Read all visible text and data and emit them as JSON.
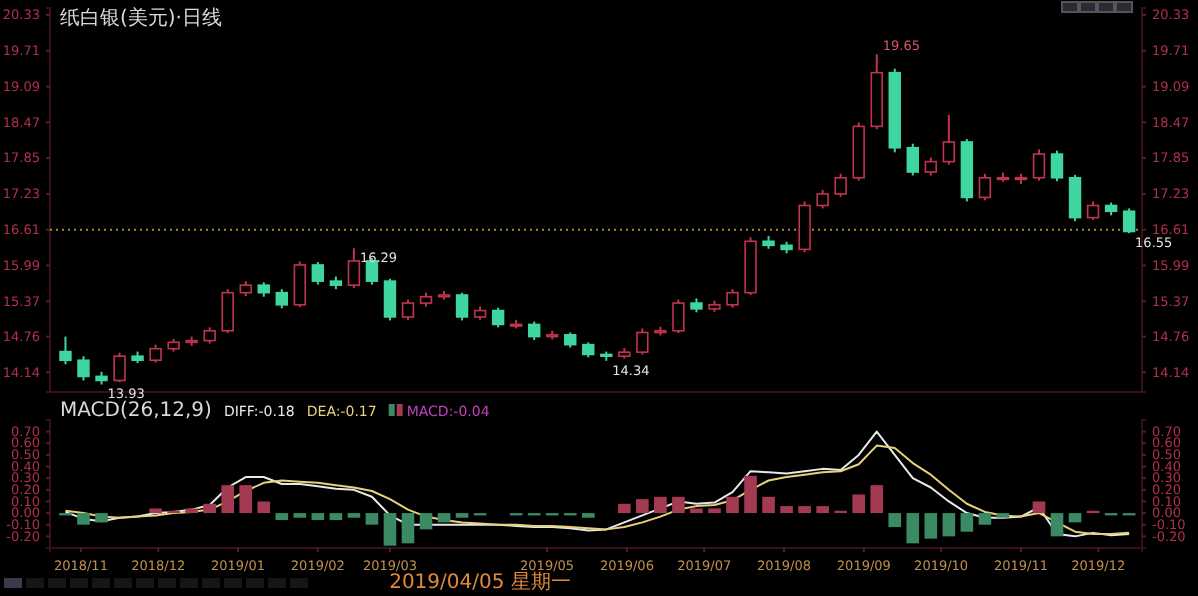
{
  "chart_data": [
    {
      "type": "candlestick",
      "title": "纸白银(美元)·日线",
      "x": [
        "2018-10-26",
        "2018-11-02",
        "2018-11-09",
        "2018-11-16",
        "2018-11-23",
        "2018-11-30",
        "2018-12-07",
        "2018-12-14",
        "2018-12-21",
        "2018-12-28",
        "2019-01-04",
        "2019-01-11",
        "2019-01-18",
        "2019-01-25",
        "2019-02-01",
        "2019-02-08",
        "2019-02-15",
        "2019-02-22",
        "2019-03-01",
        "2019-03-08",
        "2019-03-15",
        "2019-03-22",
        "2019-03-29",
        "2019-04-05",
        "2019-04-12",
        "2019-04-19",
        "2019-04-26",
        "2019-05-03",
        "2019-05-10",
        "2019-05-17",
        "2019-05-24",
        "2019-05-31",
        "2019-06-07",
        "2019-06-14",
        "2019-06-21",
        "2019-06-28",
        "2019-07-05",
        "2019-07-12",
        "2019-07-19",
        "2019-07-26",
        "2019-08-02",
        "2019-08-09",
        "2019-08-16",
        "2019-08-23",
        "2019-08-30",
        "2019-09-06",
        "2019-09-13",
        "2019-09-20",
        "2019-09-27",
        "2019-10-04",
        "2019-10-11",
        "2019-10-18",
        "2019-10-25",
        "2019-11-01",
        "2019-11-08",
        "2019-11-15",
        "2019-11-22",
        "2019-11-29",
        "2019-12-06",
        "2019-12-13"
      ],
      "ohlc": [
        [
          14.5,
          14.76,
          14.28,
          14.35
        ],
        [
          14.35,
          14.42,
          14.0,
          14.07
        ],
        [
          14.07,
          14.15,
          13.93,
          14.0
        ],
        [
          14.0,
          14.48,
          13.97,
          14.42
        ],
        [
          14.42,
          14.5,
          14.3,
          14.35
        ],
        [
          14.35,
          14.62,
          14.31,
          14.55
        ],
        [
          14.55,
          14.72,
          14.5,
          14.66
        ],
        [
          14.66,
          14.76,
          14.6,
          14.69
        ],
        [
          14.69,
          14.92,
          14.64,
          14.86
        ],
        [
          14.86,
          15.58,
          14.82,
          15.52
        ],
        [
          15.52,
          15.72,
          15.46,
          15.65
        ],
        [
          15.65,
          15.7,
          15.45,
          15.52
        ],
        [
          15.52,
          15.58,
          15.25,
          15.31
        ],
        [
          15.31,
          16.06,
          15.27,
          16.0
        ],
        [
          16.0,
          16.05,
          15.66,
          15.72
        ],
        [
          15.72,
          15.8,
          15.58,
          15.65
        ],
        [
          15.65,
          16.29,
          15.6,
          16.07
        ],
        [
          16.07,
          16.12,
          15.66,
          15.72
        ],
        [
          15.72,
          15.76,
          15.04,
          15.1
        ],
        [
          15.1,
          15.4,
          15.05,
          15.34
        ],
        [
          15.34,
          15.52,
          15.28,
          15.45
        ],
        [
          15.45,
          15.55,
          15.4,
          15.48
        ],
        [
          15.48,
          15.52,
          15.04,
          15.1
        ],
        [
          15.1,
          15.28,
          15.05,
          15.21
        ],
        [
          15.21,
          15.26,
          14.92,
          14.97
        ],
        [
          14.97,
          15.05,
          14.9,
          14.97
        ],
        [
          14.97,
          15.02,
          14.7,
          14.76
        ],
        [
          14.76,
          14.86,
          14.71,
          14.79
        ],
        [
          14.79,
          14.83,
          14.57,
          14.62
        ],
        [
          14.62,
          14.66,
          14.4,
          14.45
        ],
        [
          14.45,
          14.5,
          14.34,
          14.42
        ],
        [
          14.42,
          14.56,
          14.38,
          14.49
        ],
        [
          14.49,
          14.9,
          14.45,
          14.83
        ],
        [
          14.83,
          14.93,
          14.78,
          14.86
        ],
        [
          14.86,
          15.4,
          14.82,
          15.34
        ],
        [
          15.34,
          15.42,
          15.18,
          15.24
        ],
        [
          15.24,
          15.38,
          15.19,
          15.31
        ],
        [
          15.31,
          15.58,
          15.26,
          15.52
        ],
        [
          15.52,
          16.48,
          15.48,
          16.41
        ],
        [
          16.41,
          16.5,
          16.28,
          16.34
        ],
        [
          16.34,
          16.4,
          16.2,
          16.27
        ],
        [
          16.27,
          17.1,
          16.22,
          17.03
        ],
        [
          17.03,
          17.3,
          16.98,
          17.23
        ],
        [
          17.23,
          17.58,
          17.18,
          17.51
        ],
        [
          17.51,
          18.47,
          17.46,
          18.4
        ],
        [
          18.4,
          19.65,
          18.35,
          19.33
        ],
        [
          19.33,
          19.4,
          17.95,
          18.03
        ],
        [
          18.03,
          18.1,
          17.55,
          17.61
        ],
        [
          17.61,
          17.86,
          17.55,
          17.79
        ],
        [
          17.79,
          18.6,
          17.74,
          18.13
        ],
        [
          18.13,
          18.18,
          17.1,
          17.17
        ],
        [
          17.17,
          17.58,
          17.12,
          17.51
        ],
        [
          17.51,
          17.6,
          17.44,
          17.51
        ],
        [
          17.51,
          17.58,
          17.4,
          17.51
        ],
        [
          17.51,
          18.0,
          17.46,
          17.92
        ],
        [
          17.92,
          17.98,
          17.45,
          17.51
        ],
        [
          17.51,
          17.56,
          16.76,
          16.82
        ],
        [
          16.82,
          17.1,
          16.78,
          17.03
        ],
        [
          17.03,
          17.08,
          16.86,
          16.93
        ],
        [
          16.93,
          16.98,
          16.55,
          16.58
        ]
      ],
      "xlim": [
        "2018-10-20",
        "2019-12-18"
      ],
      "ylim": [
        13.8,
        20.45
      ],
      "yticks": [
        14.14,
        14.76,
        15.37,
        15.99,
        16.61,
        17.23,
        17.85,
        18.47,
        19.09,
        19.71,
        20.33
      ],
      "y2lim": [
        13.8,
        20.45
      ],
      "y2ticks": [
        14.14,
        14.76,
        15.37,
        15.99,
        16.61,
        17.23,
        17.85,
        18.47,
        19.09,
        19.71,
        20.33
      ],
      "tick_labels": "y",
      "ref_lines": [
        {
          "axis": "y",
          "value": 16.61,
          "color": "#b8862b",
          "line_style": "dotted"
        }
      ],
      "annotations": [
        {
          "text": "13.93",
          "x": "2018-11-09",
          "y": 13.93
        },
        {
          "text": "16.29",
          "x": "2019-02-15",
          "y": 16.29
        },
        {
          "text": "14.34",
          "x": "2019-05-24",
          "y": 14.34
        },
        {
          "text": "19.65",
          "x": "2019-09-06",
          "y": 19.65
        },
        {
          "text": "16.55",
          "x": "2019-12-13",
          "y": 16.55
        }
      ]
    },
    {
      "type": "line",
      "title": "MACD(26,12,9)",
      "legend": "top left",
      "annotations": [
        "2019/04/05 星期一"
      ],
      "x": [
        "2018-10-26",
        "2018-11-02",
        "2018-11-09",
        "2018-11-16",
        "2018-11-23",
        "2018-11-30",
        "2018-12-07",
        "2018-12-14",
        "2018-12-21",
        "2018-12-28",
        "2019-01-04",
        "2019-01-11",
        "2019-01-18",
        "2019-01-25",
        "2019-02-01",
        "2019-02-08",
        "2019-02-15",
        "2019-02-22",
        "2019-03-01",
        "2019-03-08",
        "2019-03-15",
        "2019-03-22",
        "2019-03-29",
        "2019-04-05",
        "2019-04-12",
        "2019-04-19",
        "2019-04-26",
        "2019-05-03",
        "2019-05-10",
        "2019-05-17",
        "2019-05-24",
        "2019-05-31",
        "2019-06-07",
        "2019-06-14",
        "2019-06-21",
        "2019-06-28",
        "2019-07-05",
        "2019-07-12",
        "2019-07-19",
        "2019-07-26",
        "2019-08-02",
        "2019-08-09",
        "2019-08-16",
        "2019-08-23",
        "2019-08-30",
        "2019-09-06",
        "2019-09-13",
        "2019-09-20",
        "2019-09-27",
        "2019-10-04",
        "2019-10-11",
        "2019-10-18",
        "2019-10-25",
        "2019-11-01",
        "2019-11-08",
        "2019-11-15",
        "2019-11-22",
        "2019-11-29",
        "2019-12-06",
        "2019-12-13"
      ],
      "series": [
        {
          "name": "DIFF:-0.18",
          "color": "#e8e8e8",
          "values": [
            0.01,
            -0.05,
            -0.07,
            -0.04,
            -0.03,
            0.0,
            0.01,
            0.03,
            0.07,
            0.22,
            0.31,
            0.31,
            0.25,
            0.25,
            0.23,
            0.21,
            0.2,
            0.14,
            -0.02,
            -0.1,
            -0.1,
            -0.1,
            -0.1,
            -0.1,
            -0.1,
            -0.11,
            -0.12,
            -0.12,
            -0.13,
            -0.15,
            -0.14,
            -0.08,
            -0.02,
            0.04,
            0.1,
            0.08,
            0.09,
            0.18,
            0.36,
            0.35,
            0.34,
            0.36,
            0.38,
            0.37,
            0.5,
            0.7,
            0.5,
            0.3,
            0.22,
            0.1,
            0.0,
            -0.04,
            -0.04,
            -0.03,
            0.05,
            -0.18,
            -0.2,
            -0.17,
            -0.19,
            -0.18
          ]
        },
        {
          "name": "DEA:-0.17",
          "color": "#e6d27a",
          "values": [
            0.02,
            0.0,
            -0.03,
            -0.04,
            -0.03,
            -0.02,
            0.0,
            0.01,
            0.03,
            0.1,
            0.19,
            0.26,
            0.28,
            0.27,
            0.26,
            0.24,
            0.22,
            0.19,
            0.12,
            0.03,
            -0.03,
            -0.06,
            -0.08,
            -0.09,
            -0.1,
            -0.1,
            -0.11,
            -0.11,
            -0.12,
            -0.13,
            -0.14,
            -0.12,
            -0.08,
            -0.03,
            0.03,
            0.06,
            0.07,
            0.11,
            0.2,
            0.28,
            0.31,
            0.33,
            0.35,
            0.36,
            0.42,
            0.58,
            0.56,
            0.43,
            0.33,
            0.2,
            0.08,
            0.01,
            -0.02,
            -0.03,
            0.0,
            -0.08,
            -0.16,
            -0.18,
            -0.18,
            -0.17
          ]
        },
        {
          "name": "MACD:-0.04",
          "type": "bar",
          "color": "#c040c0",
          "values": [
            -0.02,
            -0.1,
            -0.08,
            0.0,
            0.0,
            0.04,
            0.02,
            0.04,
            0.08,
            0.24,
            0.24,
            0.1,
            -0.06,
            -0.04,
            -0.06,
            -0.06,
            -0.04,
            -0.1,
            -0.28,
            -0.26,
            -0.14,
            -0.08,
            -0.04,
            -0.02,
            0.0,
            -0.02,
            -0.02,
            -0.02,
            -0.02,
            -0.04,
            0.0,
            0.08,
            0.12,
            0.14,
            0.14,
            0.04,
            0.04,
            0.14,
            0.32,
            0.14,
            0.06,
            0.06,
            0.06,
            0.02,
            0.16,
            0.24,
            -0.12,
            -0.26,
            -0.22,
            -0.2,
            -0.16,
            -0.1,
            -0.04,
            0.0,
            0.1,
            -0.2,
            -0.08,
            0.02,
            -0.02,
            -0.02
          ],
          "colors": [
            "#3a8a64",
            "#3a8a64",
            "#3a8a64",
            "#a33a52",
            "#a33a52",
            "#a33a52",
            "#a33a52",
            "#a33a52",
            "#a33a52",
            "#a33a52",
            "#a33a52",
            "#a33a52",
            "#3a8a64",
            "#3a8a64",
            "#3a8a64",
            "#3a8a64",
            "#3a8a64",
            "#3a8a64",
            "#3a8a64",
            "#3a8a64",
            "#3a8a64",
            "#3a8a64",
            "#3a8a64",
            "#3a8a64",
            "#a33a52",
            "#3a8a64",
            "#3a8a64",
            "#3a8a64",
            "#3a8a64",
            "#3a8a64",
            "#a33a52",
            "#a33a52",
            "#a33a52",
            "#a33a52",
            "#a33a52",
            "#a33a52",
            "#a33a52",
            "#a33a52",
            "#a33a52",
            "#a33a52",
            "#a33a52",
            "#a33a52",
            "#a33a52",
            "#a33a52",
            "#a33a52",
            "#a33a52",
            "#3a8a64",
            "#3a8a64",
            "#3a8a64",
            "#3a8a64",
            "#3a8a64",
            "#3a8a64",
            "#3a8a64",
            "#a33a52",
            "#a33a52",
            "#3a8a64",
            "#3a8a64",
            "#a33a52",
            "#3a8a64",
            "#3a8a64"
          ]
        }
      ],
      "xlim": [
        "2018-10-20",
        "2019-12-18"
      ],
      "xticks": [
        {
          "value": "2018-11-01",
          "label": "2018/11"
        },
        {
          "value": "2018-12-01",
          "label": "2018/12"
        },
        {
          "value": "2019-01-01",
          "label": "2019/01"
        },
        {
          "value": "2019-02-01",
          "label": "2019/02"
        },
        {
          "value": "2019-03-01",
          "label": "2019/03"
        },
        {
          "value": "2019-05-01",
          "label": "2019/05"
        },
        {
          "value": "2019-06-01",
          "label": "2019/06"
        },
        {
          "value": "2019-07-01",
          "label": "2019/07"
        },
        {
          "value": "2019-08-01",
          "label": "2019/08"
        },
        {
          "value": "2019-09-01",
          "label": "2019/09"
        },
        {
          "value": "2019-10-01",
          "label": "2019/10"
        },
        {
          "value": "2019-11-01",
          "label": "2019/11"
        },
        {
          "value": "2019-12-01",
          "label": "2019/12"
        }
      ],
      "ylim": [
        -0.3,
        0.8
      ],
      "yticks": [
        {
          "value": 0.7,
          "label": "0.70"
        },
        {
          "value": 0.6,
          "label": "0.60"
        },
        {
          "value": 0.5,
          "label": "0.50"
        },
        {
          "value": 0.4,
          "label": "0.40"
        },
        {
          "value": 0.3,
          "label": "0.30"
        },
        {
          "value": 0.2,
          "label": "0.20"
        },
        {
          "value": 0.1,
          "label": "0.10"
        },
        {
          "value": 0,
          "label": "0.00"
        },
        {
          "value": -0.1,
          "label": "-0.10"
        },
        {
          "value": -0.2,
          "label": "-0.20"
        }
      ],
      "y2lim": [
        -0.3,
        0.8
      ],
      "y2ticks": [
        {
          "value": 0.7,
          "label": "0.70"
        },
        {
          "value": 0.6,
          "label": "0.60"
        },
        {
          "value": 0.5,
          "label": "0.50"
        },
        {
          "value": 0.4,
          "label": "0.40"
        },
        {
          "value": 0.3,
          "label": "0.30"
        },
        {
          "value": 0.2,
          "label": "0.20"
        },
        {
          "value": 0.1,
          "label": "0.10"
        },
        {
          "value": 0,
          "label": "0.00"
        },
        {
          "value": -0.1,
          "label": "-0.10"
        },
        {
          "value": -0.2,
          "label": "-0.20"
        }
      ]
    }
  ]
}
